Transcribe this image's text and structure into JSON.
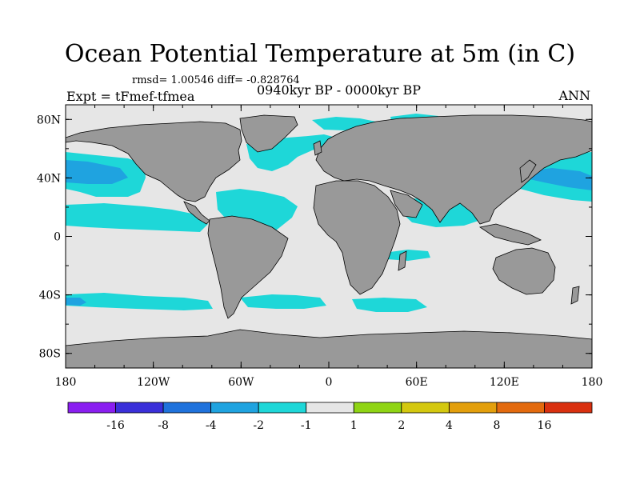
{
  "chart_data": {
    "type": "heatmap",
    "title": "Ocean Potential Temperature at 5m (in C)",
    "stats": "rmsd= 1.00546 diff= -0.828764",
    "experiment": "Expt = tFmef-tfmea",
    "period": "0940kyr BP - 0000kyr BP",
    "season": "ANN",
    "xaxis": {
      "range": [
        -180,
        180
      ],
      "ticks": [
        -180,
        -120,
        -60,
        0,
        60,
        120,
        180
      ],
      "tick_labels": [
        "180",
        "120W",
        "60W",
        "0",
        "60E",
        "120E",
        "180"
      ]
    },
    "yaxis": {
      "range": [
        -90,
        90
      ],
      "ticks": [
        80,
        40,
        0,
        -40,
        -80
      ],
      "tick_labels": [
        "80N",
        "40N",
        "0",
        "40S",
        "80S"
      ]
    },
    "colorbar": {
      "colors": [
        "#8a1ef0",
        "#3a2fd9",
        "#1f72dc",
        "#1fa3e0",
        "#1ed7d8",
        "#e6e6e6",
        "#8fd414",
        "#d4c80f",
        "#e39f0c",
        "#e36a0e",
        "#d9300f"
      ],
      "labels": [
        "-16",
        "-8",
        "-4",
        "-2",
        "-1",
        "1",
        "2",
        "4",
        "8",
        "16"
      ]
    },
    "land_color": "#999999",
    "ocean_color": "#e6e6e6"
  }
}
